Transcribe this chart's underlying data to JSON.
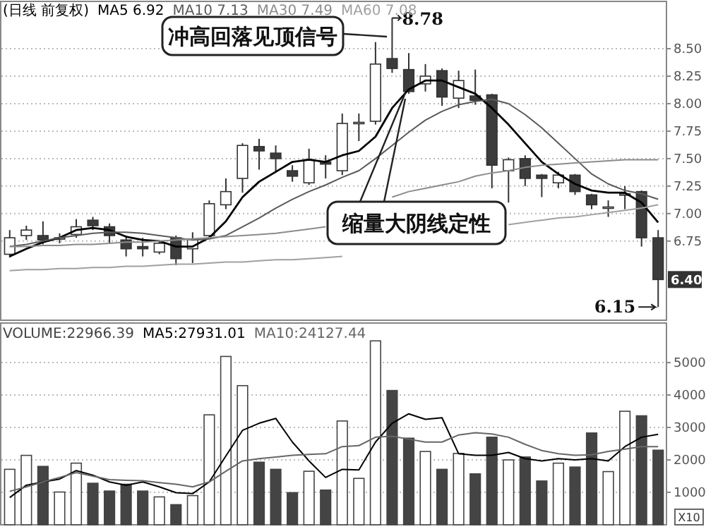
{
  "chart_data": [
    {
      "type": "candlestick",
      "title": "(日线 前复权)",
      "legend": "top left",
      "grid": "y",
      "categories": [
        null,
        null,
        null,
        null,
        null,
        null,
        null,
        null,
        null,
        null,
        null,
        null,
        null,
        null,
        null,
        null,
        null,
        null,
        null,
        null,
        null,
        null,
        null,
        null,
        null,
        null,
        null,
        null,
        null,
        null,
        null,
        null,
        null,
        null,
        null,
        null,
        null,
        null,
        null,
        null
      ],
      "ohlc": [
        [
          6.63,
          6.85,
          6.6,
          6.78
        ],
        [
          6.8,
          6.89,
          6.76,
          6.85
        ],
        [
          6.8,
          6.93,
          6.72,
          6.76
        ],
        [
          6.77,
          6.82,
          6.73,
          6.78
        ],
        [
          6.81,
          6.95,
          6.78,
          6.88
        ],
        [
          6.94,
          6.97,
          6.85,
          6.89
        ],
        [
          6.88,
          6.91,
          6.73,
          6.8
        ],
        [
          6.76,
          6.8,
          6.61,
          6.68
        ],
        [
          6.7,
          6.78,
          6.61,
          6.68
        ],
        [
          6.65,
          6.75,
          6.63,
          6.73
        ],
        [
          6.78,
          6.8,
          6.53,
          6.59
        ],
        [
          6.68,
          6.83,
          6.55,
          6.77
        ],
        [
          6.8,
          7.12,
          6.78,
          7.09
        ],
        [
          7.08,
          7.32,
          7.04,
          7.2
        ],
        [
          7.32,
          7.64,
          7.19,
          7.62
        ],
        [
          7.61,
          7.68,
          7.4,
          7.57
        ],
        [
          7.55,
          7.62,
          7.38,
          7.5
        ],
        [
          7.39,
          7.44,
          7.29,
          7.34
        ],
        [
          7.28,
          7.59,
          7.26,
          7.49
        ],
        [
          7.47,
          7.53,
          7.32,
          7.45
        ],
        [
          7.39,
          7.91,
          7.35,
          7.82
        ],
        [
          7.82,
          7.91,
          7.66,
          7.83
        ],
        [
          7.84,
          8.56,
          7.81,
          8.36
        ],
        [
          8.41,
          8.78,
          8.28,
          8.32
        ],
        [
          8.31,
          8.46,
          8.09,
          8.11
        ],
        [
          8.18,
          8.36,
          8.11,
          8.25
        ],
        [
          8.3,
          8.32,
          7.98,
          8.06
        ],
        [
          8.05,
          8.3,
          7.96,
          8.21
        ],
        [
          8.07,
          8.31,
          7.99,
          8.03
        ],
        [
          8.08,
          8.09,
          7.23,
          7.44
        ],
        [
          7.39,
          7.51,
          7.1,
          7.49
        ],
        [
          7.5,
          7.53,
          7.25,
          7.32
        ],
        [
          7.35,
          7.36,
          7.15,
          7.32
        ],
        [
          7.28,
          7.38,
          7.23,
          7.35
        ],
        [
          7.35,
          7.36,
          7.17,
          7.2
        ],
        [
          7.17,
          7.18,
          7.04,
          7.08
        ],
        [
          7.06,
          7.12,
          6.97,
          7.06
        ],
        [
          7.17,
          7.25,
          7.04,
          7.18
        ],
        [
          7.2,
          7.21,
          6.7,
          6.78
        ],
        [
          6.78,
          6.85,
          6.15,
          6.4
        ]
      ],
      "series": [
        {
          "name": "MA5 6.92",
          "type": "line",
          "color": "#000000",
          "values": [
            6.61,
            6.68,
            6.74,
            6.78,
            6.85,
            6.87,
            6.85,
            6.79,
            6.76,
            6.75,
            6.7,
            6.7,
            6.78,
            6.93,
            7.15,
            7.29,
            7.38,
            7.47,
            7.49,
            7.47,
            7.53,
            7.57,
            7.7,
            7.96,
            8.13,
            8.21,
            8.21,
            8.15,
            8.09,
            7.96,
            7.81,
            7.64,
            7.47,
            7.36,
            7.27,
            7.21,
            7.19,
            7.19,
            7.1,
            6.92
          ]
        },
        {
          "name": "MA10 7.13",
          "type": "line",
          "color": "#5a5a5a",
          "values": [
            6.7,
            6.72,
            6.75,
            6.78,
            6.8,
            6.82,
            6.83,
            6.83,
            6.82,
            6.8,
            6.78,
            6.76,
            6.77,
            6.8,
            6.88,
            6.96,
            7.05,
            7.13,
            7.2,
            7.26,
            7.33,
            7.39,
            7.5,
            7.62,
            7.74,
            7.85,
            7.93,
            7.99,
            8.02,
            8.04,
            8.0,
            7.9,
            7.78,
            7.64,
            7.5,
            7.36,
            7.27,
            7.21,
            7.18,
            7.13
          ]
        },
        {
          "name": "MA30 7.49",
          "type": "line",
          "color": "#8c8c8c",
          "values": [
            6.7,
            6.7,
            6.71,
            6.71,
            6.72,
            6.72,
            6.73,
            6.74,
            6.74,
            6.75,
            6.76,
            6.77,
            6.78,
            6.79,
            6.8,
            6.81,
            6.82,
            6.84,
            6.86,
            6.88,
            null,
            null,
            null,
            7.15,
            7.2,
            7.23,
            7.26,
            7.29,
            7.34,
            7.37,
            7.39,
            7.42,
            7.44,
            7.45,
            7.46,
            7.47,
            7.48,
            7.49,
            7.49,
            7.49
          ]
        },
        {
          "name": "MA60 7.08",
          "type": "line",
          "color": "#a0a0a0",
          "values": [
            6.48,
            6.49,
            6.49,
            6.5,
            6.5,
            6.51,
            6.51,
            6.52,
            6.52,
            6.53,
            6.54,
            6.54,
            6.55,
            6.56,
            6.56,
            6.57,
            6.58,
            6.58,
            6.59,
            6.6,
            6.61,
            null,
            null,
            null,
            null,
            null,
            null,
            null,
            null,
            null,
            6.9,
            6.92,
            6.94,
            6.96,
            6.97,
            6.99,
            7.01,
            7.03,
            7.05,
            7.08
          ]
        }
      ],
      "ylim": [
        6.03,
        8.93
      ],
      "yticks": [
        {
          "value": 6.75,
          "label": "6.75"
        },
        {
          "value": 7,
          "label": "7.00"
        },
        {
          "value": 7.25,
          "label": "7.25"
        },
        {
          "value": 7.5,
          "label": "7.50"
        },
        {
          "value": 7.75,
          "label": "7.75"
        },
        {
          "value": 8,
          "label": "8.00"
        },
        {
          "value": 8.25,
          "label": "8.25"
        },
        {
          "value": 8.5,
          "label": "8.50"
        }
      ],
      "annotations": [
        "冲高回落见顶信号",
        "8.78",
        "缩量大阴线定性",
        "6.15",
        {
          "text": "6.40",
          "y": 6.4
        }
      ]
    },
    {
      "type": "bar",
      "legend": "top left",
      "grid": "y",
      "categories": [
        null,
        null,
        null,
        null,
        null,
        null,
        null,
        null,
        null,
        null,
        null,
        null,
        null,
        null,
        null,
        null,
        null,
        null,
        null,
        null,
        null,
        null,
        null,
        null,
        null,
        null,
        null,
        null,
        null,
        null,
        null,
        null,
        null,
        null,
        null,
        null,
        null,
        null,
        null,
        null
      ],
      "series": [
        {
          "name": "VOLUME:22966.39",
          "type": "bar",
          "color": "#444444",
          "colors": [
            "#ffffff",
            "#ffffff",
            "#444444",
            "#ffffff",
            "#ffffff",
            "#444444",
            "#444444",
            "#444444",
            "#444444",
            "#ffffff",
            "#444444",
            "#ffffff",
            "#ffffff",
            "#ffffff",
            "#ffffff",
            "#444444",
            "#444444",
            "#444444",
            "#ffffff",
            "#444444",
            "#ffffff",
            "#ffffff",
            "#ffffff",
            "#444444",
            "#444444",
            "#ffffff",
            "#444444",
            "#ffffff",
            "#444444",
            "#444444",
            "#ffffff",
            "#444444",
            "#444444",
            "#ffffff",
            "#444444",
            "#444444",
            "#ffffff",
            "#ffffff",
            "#444444",
            "#444444"
          ],
          "values": [
            1710,
            2140,
            1800,
            1010,
            1900,
            1280,
            1040,
            1250,
            1040,
            860,
            620,
            900,
            3390,
            5190,
            4290,
            1930,
            1710,
            990,
            1650,
            1070,
            3200,
            1430,
            5670,
            4140,
            2670,
            2260,
            1710,
            2200,
            1570,
            2700,
            2000,
            2090,
            1350,
            1900,
            1780,
            2830,
            1640,
            3500,
            3360,
            2300
          ]
        },
        {
          "name": "MA5:27931.01",
          "type": "line",
          "color": "#000000",
          "values": [
            840,
            1220,
            1320,
            1410,
            1670,
            1530,
            1320,
            1220,
            1320,
            1170,
            990,
            960,
            1320,
            2120,
            2910,
            3130,
            3280,
            2550,
            1970,
            1460,
            1710,
            1690,
            2550,
            3130,
            3420,
            3250,
            3300,
            2190,
            2140,
            2140,
            2230,
            2040,
            1970,
            2040,
            2000,
            2040,
            1970,
            2410,
            2700,
            2790
          ]
        },
        {
          "name": "MA10:24127.44",
          "type": "line",
          "color": "#666666",
          "values": [
            1030,
            1170,
            1320,
            1460,
            1610,
            1500,
            1390,
            1370,
            1360,
            1300,
            1250,
            1170,
            1320,
            1650,
            1970,
            2040,
            2090,
            2140,
            2170,
            2190,
            2410,
            2440,
            2700,
            2730,
            2640,
            2550,
            2550,
            2770,
            2840,
            2800,
            2700,
            2480,
            2290,
            2190,
            2140,
            2160,
            2260,
            2330,
            2410,
            2410
          ]
        }
      ],
      "ylim": [
        0,
        6220
      ],
      "yticks": [
        1000,
        2000,
        3000,
        4000,
        5000
      ],
      "annotations": [
        "X10"
      ]
    }
  ]
}
